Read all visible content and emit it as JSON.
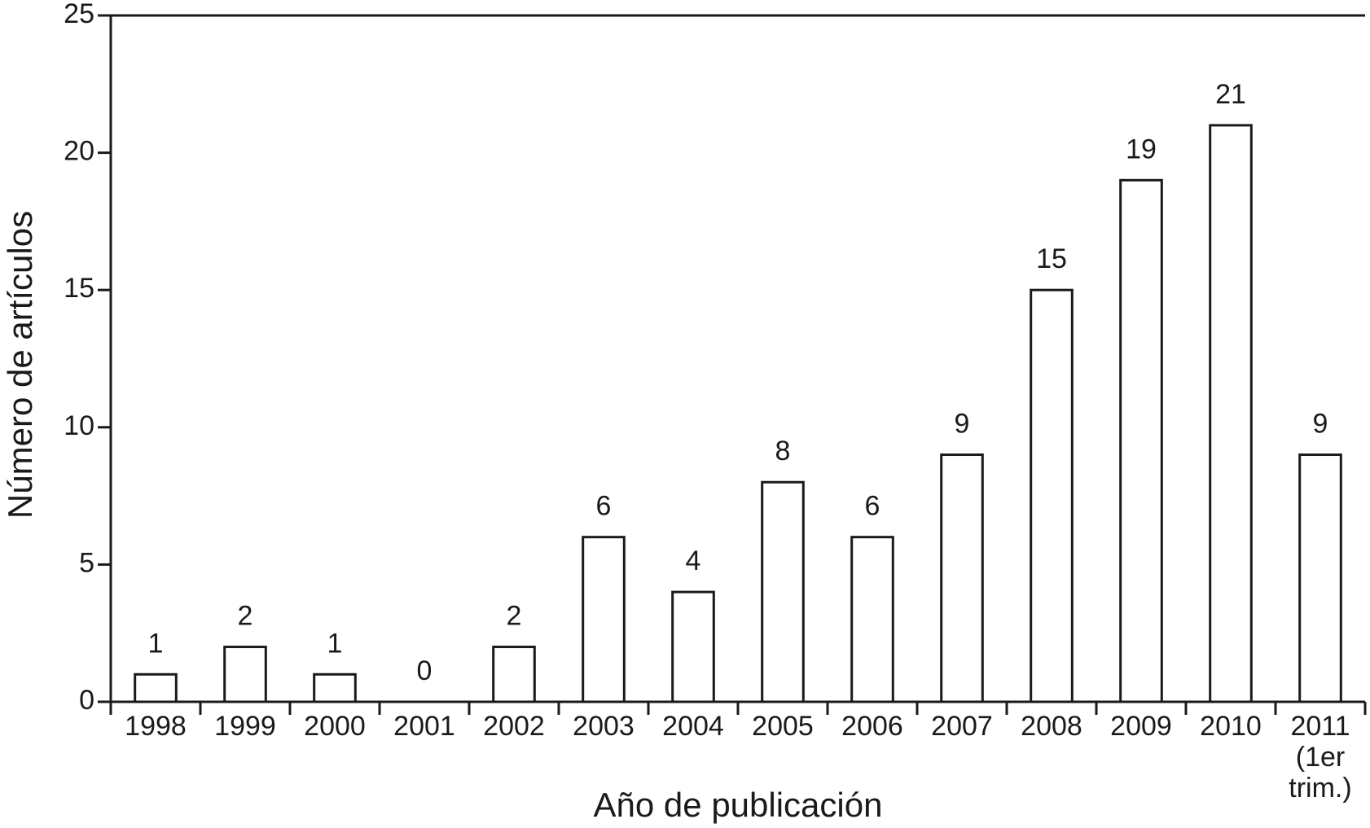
{
  "chart_data": {
    "type": "bar",
    "x_label": "Año de publicación",
    "y_label": "Número de artículos",
    "categories": [
      "1998",
      "1999",
      "2000",
      "2001",
      "2002",
      "2003",
      "2004",
      "2005",
      "2006",
      "2007",
      "2008",
      "2009",
      "2010",
      "2011 (1er trim.)"
    ],
    "values": [
      1,
      2,
      1,
      0,
      2,
      6,
      4,
      8,
      6,
      9,
      15,
      19,
      21,
      9
    ],
    "color": "#ffffff",
    "ylim": [
      0,
      25
    ],
    "yticks": [
      0,
      5,
      10,
      15,
      20,
      25
    ],
    "grid": false
  }
}
